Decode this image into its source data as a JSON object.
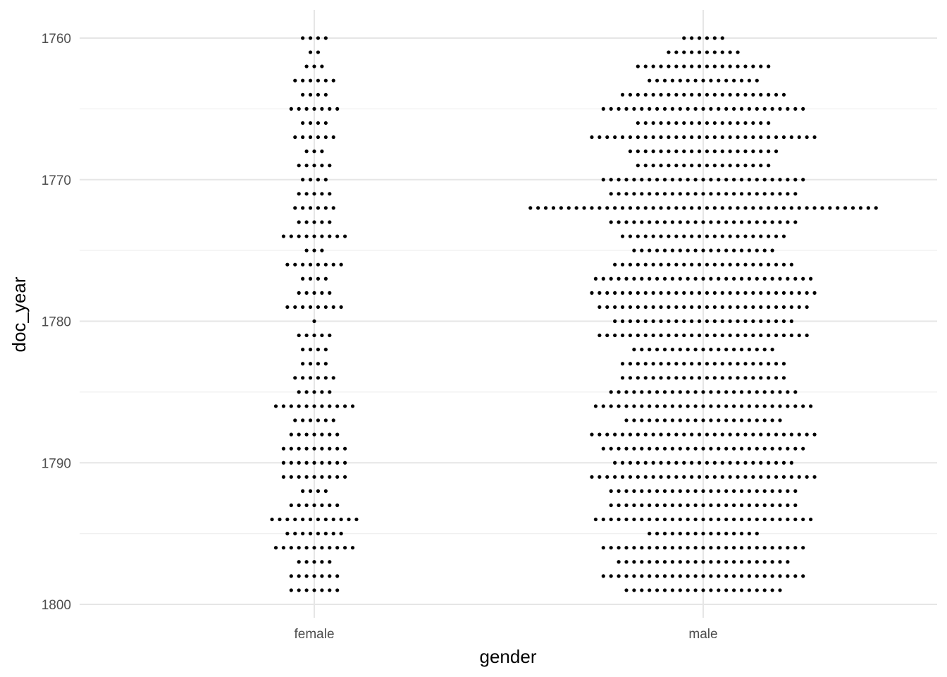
{
  "chart_data": {
    "type": "scatter",
    "subtype": "dotplot",
    "xlabel": "gender",
    "ylabel": "doc_year",
    "categories": [
      "female",
      "male"
    ],
    "y_ticks": [
      1760,
      1770,
      1780,
      1790,
      1800
    ],
    "ylim": [
      1759,
      1801
    ],
    "y_reversed": true,
    "grid": true,
    "series": [
      {
        "category": "female",
        "years": [
          1760,
          1761,
          1762,
          1763,
          1764,
          1765,
          1766,
          1767,
          1768,
          1769,
          1770,
          1771,
          1772,
          1773,
          1774,
          1775,
          1776,
          1777,
          1778,
          1779,
          1780,
          1781,
          1782,
          1783,
          1784,
          1785,
          1786,
          1787,
          1788,
          1789,
          1790,
          1791,
          1792,
          1793,
          1794,
          1795,
          1796,
          1797,
          1798,
          1799
        ],
        "counts": [
          4,
          2,
          3,
          6,
          4,
          7,
          4,
          6,
          3,
          5,
          4,
          5,
          6,
          5,
          9,
          3,
          8,
          4,
          5,
          8,
          1,
          5,
          4,
          4,
          6,
          5,
          11,
          6,
          7,
          9,
          9,
          9,
          4,
          7,
          12,
          8,
          11,
          5,
          7,
          7
        ]
      },
      {
        "category": "male",
        "years": [
          1760,
          1761,
          1762,
          1763,
          1764,
          1765,
          1766,
          1767,
          1768,
          1769,
          1770,
          1771,
          1772,
          1773,
          1774,
          1775,
          1776,
          1777,
          1778,
          1779,
          1780,
          1781,
          1782,
          1783,
          1784,
          1785,
          1786,
          1787,
          1788,
          1789,
          1790,
          1791,
          1792,
          1793,
          1794,
          1795,
          1796,
          1797,
          1798,
          1799
        ],
        "counts": [
          6,
          10,
          18,
          15,
          22,
          27,
          18,
          30,
          20,
          18,
          27,
          25,
          46,
          25,
          22,
          19,
          24,
          29,
          30,
          28,
          24,
          28,
          19,
          22,
          22,
          25,
          29,
          21,
          30,
          27,
          24,
          30,
          25,
          25,
          29,
          15,
          27,
          23,
          27,
          21
        ]
      }
    ]
  },
  "colors": {
    "dot": "#000000",
    "grid_major": "#e6e6e6",
    "grid_minor": "#f0f0f0",
    "tick_text": "#4d4d4d"
  }
}
